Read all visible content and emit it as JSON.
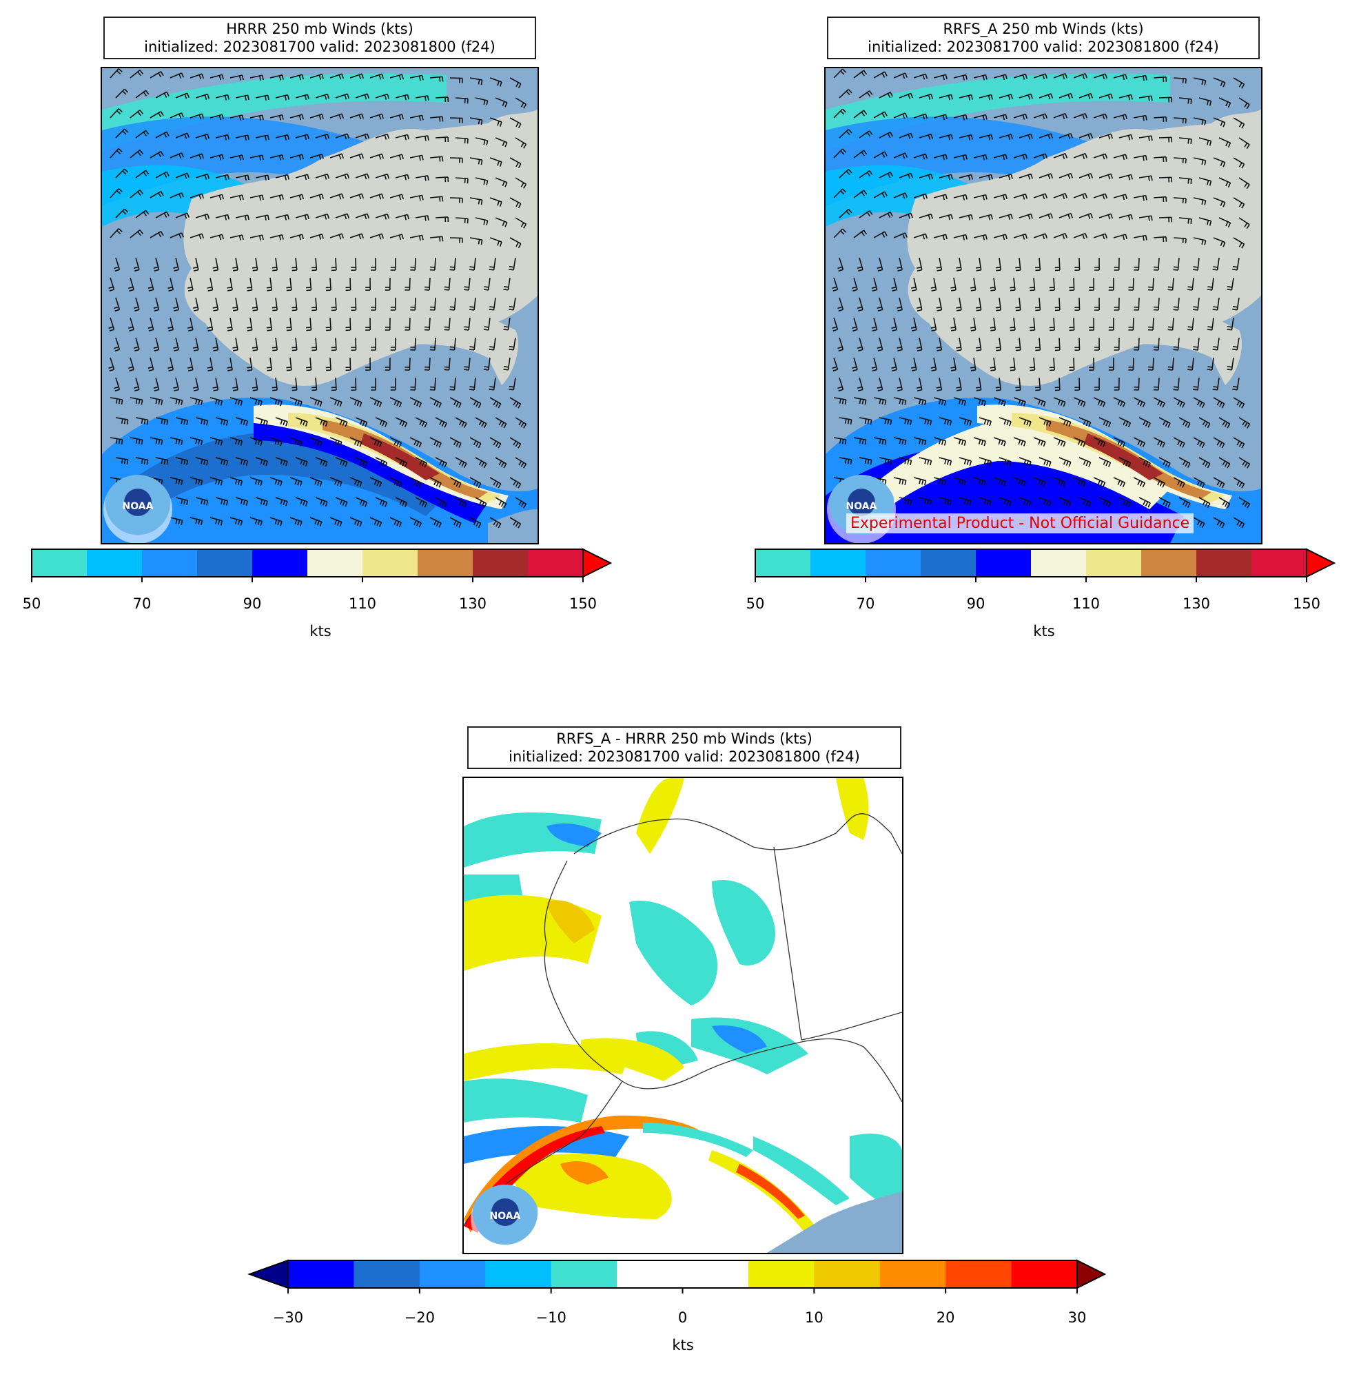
{
  "panels": {
    "hrrr": {
      "title_line1": "HRRR 250 mb Winds (kts)",
      "title_line2": "initialized: 2023081700 valid: 2023081800 (f24)"
    },
    "rrfs": {
      "title_line1": "RRFS_A 250 mb Winds (kts)",
      "title_line2": "initialized: 2023081700 valid: 2023081800 (f24)",
      "watermark": "Experimental Product - Not Official Guidance"
    },
    "diff": {
      "title_line1": "RRFS_A - HRRR 250 mb Winds (kts)",
      "title_line2": "initialized: 2023081700 valid: 2023081800 (f24)"
    }
  },
  "logo_text": "NOAA",
  "colorbars": {
    "wind": {
      "unit": "kts",
      "ticks": [
        "50",
        "70",
        "90",
        "110",
        "130",
        "150"
      ],
      "colors": [
        "#40e0d0",
        "#00bfff",
        "#1e90ff",
        "#1c6fce",
        "#0000ff",
        "#f5f5dc",
        "#f0e68c",
        "#cd853f",
        "#a52a2a",
        "#dc143c"
      ],
      "extend_color": "#ff0000"
    },
    "diff": {
      "unit": "kts",
      "ticks": [
        "−30",
        "−20",
        "−10",
        "0",
        "10",
        "20",
        "30"
      ],
      "colors": [
        "#0000ff",
        "#1c6fce",
        "#1e90ff",
        "#00bfff",
        "#40e0d0",
        "#ffffff",
        "#ffffff",
        "#eeee00",
        "#eec900",
        "#ff8c00",
        "#ff4500",
        "#ff0000"
      ],
      "extend_low": "#00008b",
      "extend_high": "#8b0000"
    }
  },
  "colors": {
    "ocean": "#86add0",
    "land": "#d3d6cf"
  }
}
